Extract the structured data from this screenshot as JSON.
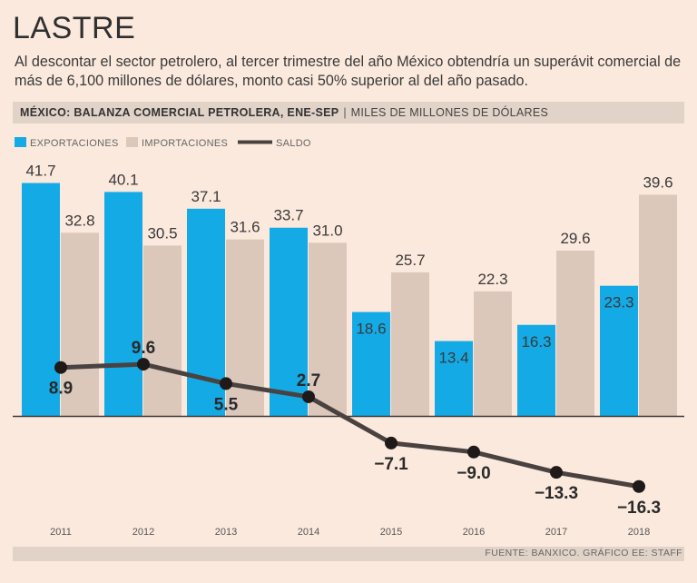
{
  "header": {
    "title": "LASTRE",
    "subtitle": "Al descontar el sector petrolero, al tercer trimestre del año México obtendría un superávit comercial de más de 6,100 millones de dólares, monto casi 50% superior al del año pasado.",
    "chart_title_bold": "MÉXICO: BALANZA COMERCIAL PETROLERA, ENE-SEP",
    "separator": "|",
    "chart_units": "MILES DE MILLONES DE DÓLARES"
  },
  "footer": {
    "source": "FUENTE: BANXICO. GRÁFICO EE: STAFF"
  },
  "colors": {
    "exports": "#14aae6",
    "imports": "#dcc8bb",
    "balance": "#4a4240",
    "text": "#3a3a3a",
    "axis": "#3a3a3a"
  },
  "chart_data": {
    "type": "bar",
    "title": "MÉXICO: BALANZA COMERCIAL PETROLERA, ENE-SEP",
    "ylabel": "MILES DE MILLONES DE DÓLARES",
    "categories": [
      "2011",
      "2012",
      "2013",
      "2014",
      "2015",
      "2016",
      "2017",
      "2018"
    ],
    "legend_position": "top-left",
    "series": [
      {
        "name": "EXPORTACIONES",
        "type": "bar",
        "values": [
          41.7,
          40.1,
          37.1,
          33.7,
          18.6,
          13.4,
          16.3,
          23.3
        ],
        "labels": [
          "41.7",
          "40.1",
          "37.1",
          "33.7",
          "18.6",
          "13.4",
          "16.3",
          "23.3"
        ]
      },
      {
        "name": "IMPORTACIONES",
        "type": "bar",
        "values": [
          32.8,
          30.5,
          31.6,
          31.0,
          25.7,
          22.3,
          29.6,
          39.6
        ],
        "labels": [
          "32.8",
          "30.5",
          "31.6",
          "31.0",
          "25.7",
          "22.3",
          "29.6",
          "39.6"
        ]
      },
      {
        "name": "SALDO",
        "type": "line",
        "values": [
          8.9,
          9.6,
          5.5,
          2.7,
          -7.1,
          -9.0,
          -13.3,
          -16.3
        ],
        "labels": [
          "8.9",
          "9.6",
          "5.5",
          "2.7",
          "−7.1",
          "−9.0",
          "−13.3",
          "−16.3"
        ]
      }
    ]
  }
}
